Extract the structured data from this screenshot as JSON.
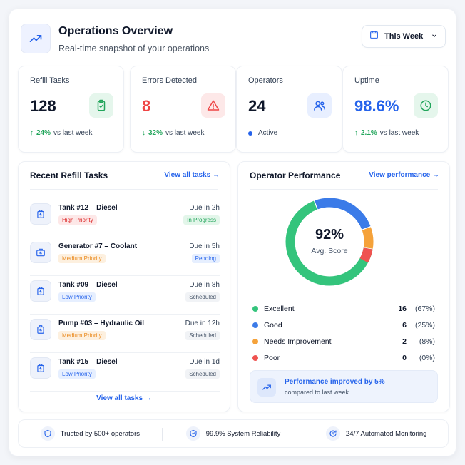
{
  "header": {
    "title": "Operations Overview",
    "subtitle": "Real-time snapshot of your operations",
    "period": "This Week"
  },
  "stats": [
    {
      "label": "Refill Tasks",
      "value": "128",
      "delta": "24%",
      "foot": "vs last week",
      "trend": "up",
      "color": "#0f172a"
    },
    {
      "label": "Errors Detected",
      "value": "8",
      "delta": "32%",
      "foot": "vs last week",
      "trend": "down",
      "color": "#ef4444"
    },
    {
      "label": "Operators",
      "value": "24",
      "delta": "",
      "foot": "Active",
      "trend": "dot",
      "color": "#0f172a"
    },
    {
      "label": "Uptime",
      "value": "98.6%",
      "delta": "2.1%",
      "foot": "vs last week",
      "trend": "up",
      "color": "#2563eb"
    }
  ],
  "tasks_panel": {
    "title": "Recent Refill Tasks",
    "link": "View all tasks →",
    "bottom_link": "View all tasks →",
    "tasks": [
      {
        "name": "Tank #12 – Diesel",
        "priority": "High Priority",
        "due": "Due in 2h",
        "status": "In Progress"
      },
      {
        "name": "Generator #7 – Coolant",
        "priority": "Medium Priority",
        "due": "Due in 5h",
        "status": "Pending"
      },
      {
        "name": "Tank #09 – Diesel",
        "priority": "Low Priority",
        "due": "Due in 8h",
        "status": "Scheduled"
      },
      {
        "name": "Pump #03 – Hydraulic Oil",
        "priority": "Medium Priority",
        "due": "Due in 12h",
        "status": "Scheduled"
      },
      {
        "name": "Tank #15 – Diesel",
        "priority": "Low Priority",
        "due": "Due in 1d",
        "status": "Scheduled"
      }
    ]
  },
  "performance_panel": {
    "title": "Operator Performance",
    "link": "View performance →",
    "score": "92%",
    "score_label": "Avg. Score",
    "improvement_title": "Performance improved by 5%",
    "improvement_sub": "compared to last week"
  },
  "chart_data": {
    "type": "pie",
    "categories": [
      "Excellent",
      "Good",
      "Needs Improvement",
      "Poor"
    ],
    "values": [
      16,
      6,
      2,
      0
    ],
    "percents": [
      "(67%)",
      "(25%)",
      "(8%)",
      "(0%)"
    ],
    "colors": [
      "#34c47c",
      "#3b7be8",
      "#f5a23a",
      "#ef5350"
    ]
  },
  "footer": {
    "items": [
      "Trusted by 500+ operators",
      "99.9% System Reliability",
      "24/7 Automated Monitoring"
    ]
  },
  "colors": {
    "accent": "#2563eb",
    "success": "#22a55b",
    "danger": "#ef4444",
    "warning": "#f5a23a"
  }
}
